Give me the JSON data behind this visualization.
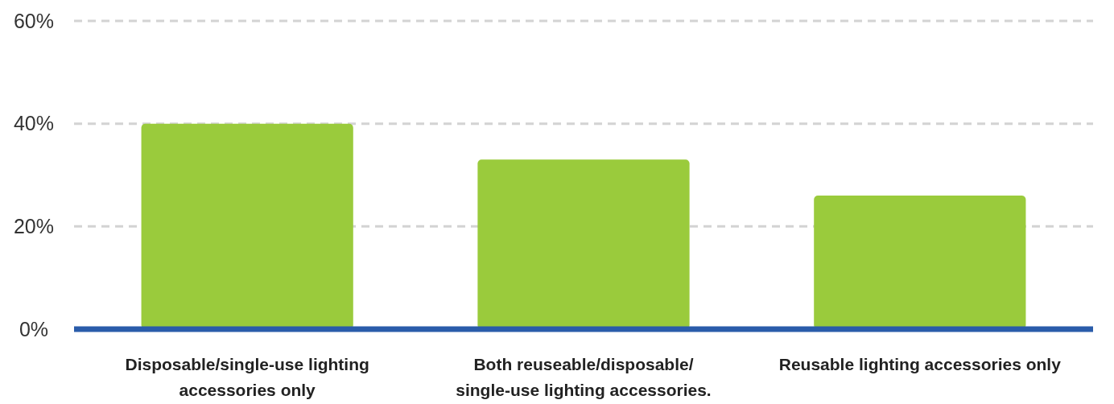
{
  "chart_data": {
    "type": "bar",
    "categories": [
      "Disposable/single-use lighting accessories only",
      "Both reuseable/disposable/ single-use lighting accessories.",
      "Reusable lighting accessories only"
    ],
    "values": [
      40,
      33,
      26
    ],
    "color": "#9acb3c",
    "ylim": [
      0,
      60
    ],
    "yticks": [
      {
        "value": 0,
        "label": "0%"
      },
      {
        "value": 20,
        "label": "20%"
      },
      {
        "value": 40,
        "label": "40%"
      },
      {
        "value": 60,
        "label": "60%"
      }
    ],
    "grid": "y"
  }
}
